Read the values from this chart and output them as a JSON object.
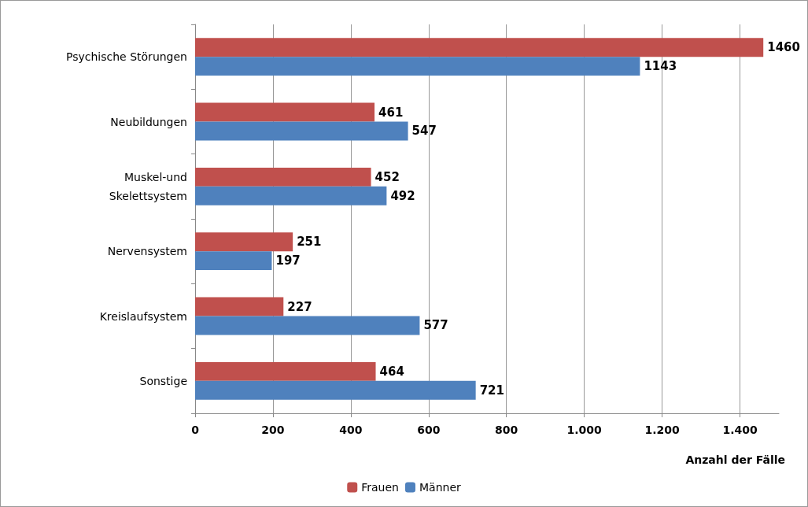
{
  "chart_data": {
    "type": "bar",
    "orientation": "horizontal",
    "xlabel": "Anzahl der Fälle",
    "categories": [
      "Psychische Störungen",
      "Neubildungen",
      "Muskel-und\nSkelettsystem",
      "Nervensystem",
      "Kreislaufsystem",
      "Sonstige"
    ],
    "series": [
      {
        "name": "Frauen",
        "color": "#c0504d",
        "values": [
          1460,
          461,
          452,
          251,
          227,
          464
        ]
      },
      {
        "name": "Männer",
        "color": "#4f81bd",
        "values": [
          1143,
          547,
          492,
          197,
          577,
          721
        ]
      }
    ],
    "xlim": [
      0,
      1500
    ],
    "xticks": [
      0,
      200,
      400,
      600,
      800,
      {
        "value": 1000,
        "label": "1.000"
      },
      {
        "value": 1200,
        "label": "1.200"
      },
      {
        "value": 1400,
        "label": "1.400"
      }
    ],
    "grid": "x",
    "legend": "bottom",
    "data_labels": true
  }
}
